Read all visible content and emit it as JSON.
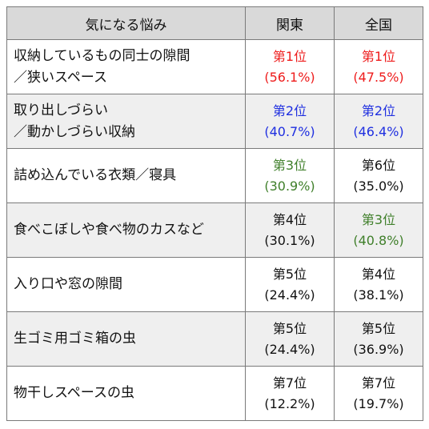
{
  "headers": [
    "気になる悩み",
    "関東",
    "全国"
  ],
  "rows": [
    {
      "concern": [
        "収納しているもの同士の隙間",
        "／狭いスペース"
      ],
      "kanto": {
        "rank": "第1位",
        "percent": "(56.1%)",
        "color": "red"
      },
      "national": {
        "rank": "第1位",
        "percent": "(47.5%)",
        "color": "red"
      }
    },
    {
      "concern": [
        "取り出しづらい",
        "／動かしづらい収納"
      ],
      "kanto": {
        "rank": "第2位",
        "percent": "(40.7%)",
        "color": "blue"
      },
      "national": {
        "rank": "第2位",
        "percent": "(46.4%)",
        "color": "blue"
      }
    },
    {
      "concern": [
        "詰め込んでいる衣類／寝具"
      ],
      "kanto": {
        "rank": "第3位",
        "percent": "(30.9%)",
        "color": "green"
      },
      "national": {
        "rank": "第6位",
        "percent": "(35.0%)",
        "color": "black"
      }
    },
    {
      "concern": [
        "食べこぼしや食べ物のカスなど"
      ],
      "kanto": {
        "rank": "第4位",
        "percent": "(30.1%)",
        "color": "black"
      },
      "national": {
        "rank": "第3位",
        "percent": "(40.8%)",
        "color": "green"
      }
    },
    {
      "concern": [
        "入り口や窓の隙間"
      ],
      "kanto": {
        "rank": "第5位",
        "percent": "(24.4%)",
        "color": "black"
      },
      "national": {
        "rank": "第4位",
        "percent": "(38.1%)",
        "color": "black"
      }
    },
    {
      "concern": [
        "生ゴミ用ゴミ箱の虫"
      ],
      "kanto": {
        "rank": "第5位",
        "percent": "(24.4%)",
        "color": "black"
      },
      "national": {
        "rank": "第5位",
        "percent": "(36.9%)",
        "color": "black"
      }
    },
    {
      "concern": [
        "物干しスペースの虫"
      ],
      "kanto": {
        "rank": "第7位",
        "percent": "(12.2%)",
        "color": "black"
      },
      "national": {
        "rank": "第7位",
        "percent": "(19.7%)",
        "color": "black"
      }
    }
  ],
  "colors": {
    "red": "#ee1c1c",
    "blue": "#1f2fe0",
    "green": "#3f7f2a",
    "black": "#111111",
    "header_bg": "#d9d9d9",
    "stripe_bg": "#efefef"
  }
}
